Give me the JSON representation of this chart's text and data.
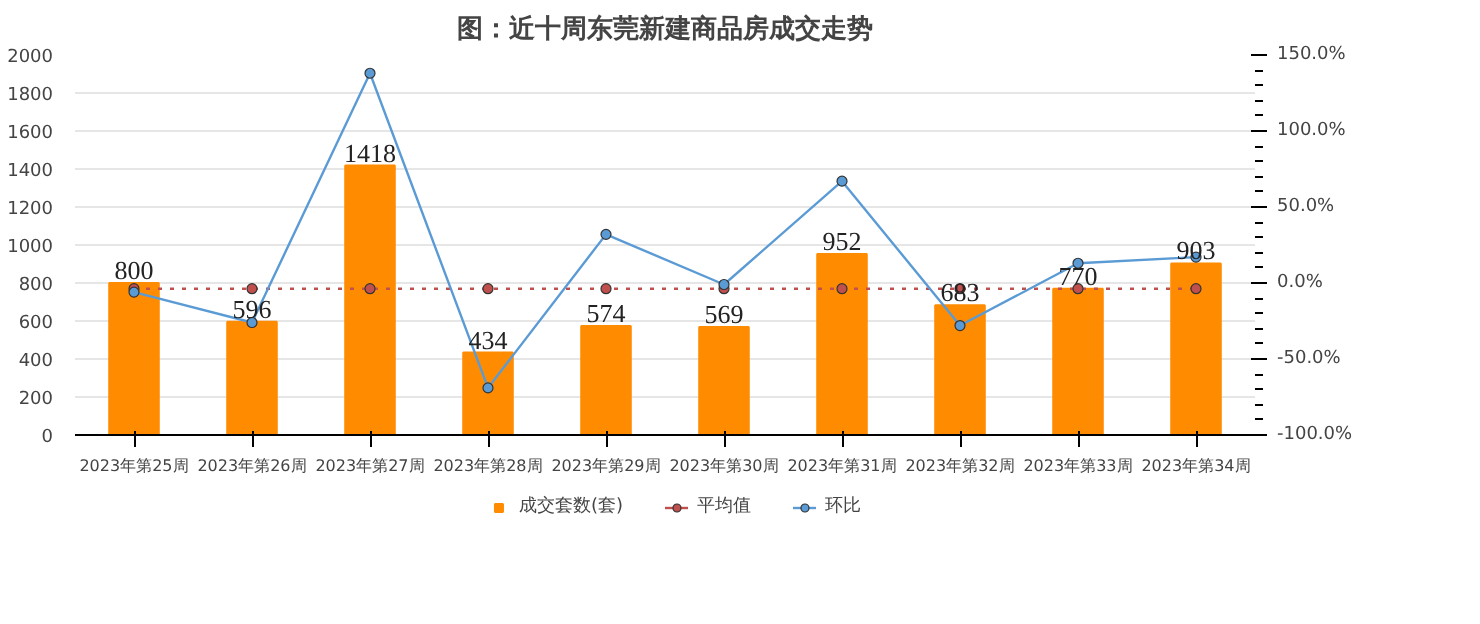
{
  "chart_data": {
    "type": "bar",
    "title": "图：近十周东莞新建商品房成交走势",
    "categories": [
      "2023年第25周",
      "2023年第26周",
      "2023年第27周",
      "2023年第28周",
      "2023年第29周",
      "2023年第30周",
      "2023年第31周",
      "2023年第32周",
      "2023年第33周",
      "2023年第34周"
    ],
    "series": [
      {
        "name": "成交套数(套)",
        "color": "#ff8c00",
        "values": [
          800,
          596,
          1418,
          434,
          574,
          569,
          952,
          683,
          770,
          903
        ],
        "value_labels": [
          "800",
          "596",
          "1418",
          "434",
          "574",
          "569",
          "952",
          "683",
          "770",
          "903"
        ]
      },
      {
        "name": "平均值",
        "type": "line",
        "color": "#c0504d",
        "line_style": "dotted",
        "marker": "circle",
        "values": [
          770,
          770,
          770,
          770,
          770,
          770,
          770,
          770,
          770,
          770
        ]
      },
      {
        "name": "环比",
        "type": "line",
        "axis": "y2",
        "color": "#5b9bd5",
        "line_style": "solid",
        "marker": "circle",
        "values": [
          -6,
          -26,
          138,
          -69,
          32,
          -1,
          67,
          -28,
          13,
          17
        ]
      }
    ],
    "ylim": [
      0,
      2000
    ],
    "yticks": [
      0,
      200,
      400,
      600,
      800,
      1000,
      1200,
      1400,
      1600,
      1800,
      2000
    ],
    "y2lim": [
      -100,
      150
    ],
    "y2ticks": [
      {
        "value": -100,
        "label": "-100.0%"
      },
      {
        "value": -50,
        "label": "-50.0%"
      },
      {
        "value": 0,
        "label": "0.0%"
      },
      {
        "value": 50,
        "label": "50.0%"
      },
      {
        "value": 100,
        "label": "100.0%"
      },
      {
        "value": 150,
        "label": "150.0%"
      }
    ],
    "grid": "y",
    "legend": "bottom"
  }
}
